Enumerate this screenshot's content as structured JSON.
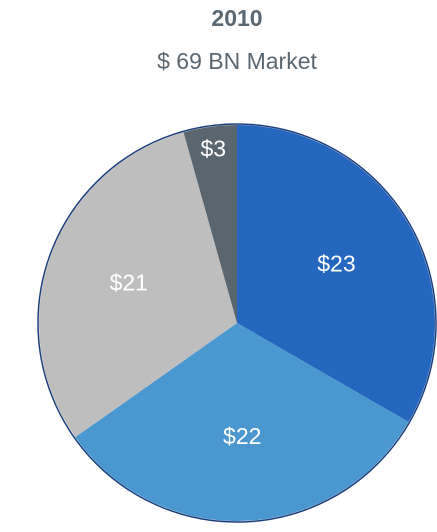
{
  "chart_data": {
    "type": "pie",
    "title": "2010",
    "subtitle": "$ 69 BN Market",
    "values": [
      23,
      22,
      21,
      3
    ],
    "value_labels": [
      "$23",
      "$22",
      "$21",
      "$3"
    ],
    "colors": [
      "#2566be",
      "#4b98d1",
      "#bebebe",
      "#59666f"
    ]
  }
}
